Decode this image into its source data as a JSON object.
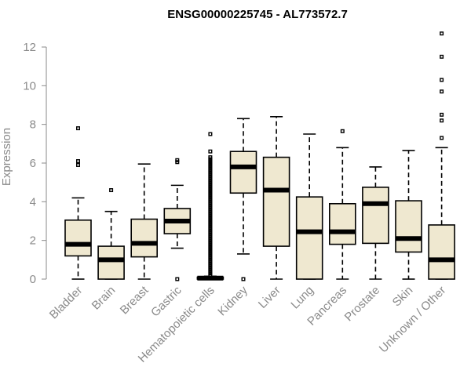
{
  "chart_data": {
    "type": "boxplot",
    "title": "ENSG00000225745 - AL773572.7",
    "xlabel": "",
    "ylabel": "Expression",
    "ylim": [
      0,
      12.7
    ],
    "yticks": [
      0,
      2,
      4,
      6,
      8,
      10,
      12
    ],
    "box_color": "#efe8d0",
    "categories": [
      "Bladder",
      "Brain",
      "Breast",
      "Gastric",
      "Hematopoietic cells",
      "Kidney",
      "Liver",
      "Lung",
      "Pancreas",
      "Prostate",
      "Skin",
      "Unknown / Other"
    ],
    "boxes": [
      {
        "min": 0,
        "q1": 1.2,
        "median": 1.8,
        "q3": 3.05,
        "max": 4.2,
        "outliers": [
          5.9,
          6.1,
          7.8
        ]
      },
      {
        "min": 0,
        "q1": 0,
        "median": 1.0,
        "q3": 1.7,
        "max": 3.5,
        "outliers": [
          4.6
        ]
      },
      {
        "min": 0,
        "q1": 1.15,
        "median": 1.85,
        "q3": 3.1,
        "max": 5.95,
        "outliers": []
      },
      {
        "min": 1.6,
        "q1": 2.35,
        "median": 3.0,
        "q3": 3.65,
        "max": 4.85,
        "outliers": [
          0,
          6.05,
          6.15
        ]
      },
      {
        "min": 0,
        "q1": 0,
        "median": 0.05,
        "q3": 0.1,
        "max": 0.15,
        "outliers": [
          0.2,
          0.3,
          0.4,
          0.5,
          0.6,
          0.7,
          0.8,
          0.9,
          1.0,
          1.1,
          1.2,
          1.3,
          1.4,
          1.5,
          1.6,
          1.7,
          1.8,
          1.9,
          2.0,
          2.1,
          2.2,
          2.3,
          2.4,
          2.5,
          2.6,
          2.7,
          2.8,
          2.9,
          3.0,
          3.1,
          3.2,
          3.3,
          3.4,
          3.5,
          3.6,
          3.7,
          3.8,
          3.9,
          4.0,
          4.1,
          4.2,
          4.3,
          4.4,
          4.5,
          4.6,
          4.7,
          4.8,
          4.9,
          5.0,
          5.1,
          5.2,
          5.3,
          5.4,
          5.5,
          5.6,
          5.7,
          5.8,
          5.9,
          6.0,
          6.1,
          6.2,
          6.3,
          6.6,
          7.5
        ]
      },
      {
        "min": 1.3,
        "q1": 4.45,
        "median": 5.8,
        "q3": 6.6,
        "max": 8.3,
        "outliers": [
          0
        ]
      },
      {
        "min": 0,
        "q1": 1.7,
        "median": 4.6,
        "q3": 6.3,
        "max": 8.4,
        "outliers": []
      },
      {
        "min": 0,
        "q1": 0,
        "median": 2.45,
        "q3": 4.25,
        "max": 7.5,
        "outliers": []
      },
      {
        "min": 0,
        "q1": 1.8,
        "median": 2.45,
        "q3": 3.9,
        "max": 6.8,
        "outliers": [
          7.65
        ]
      },
      {
        "min": 0,
        "q1": 1.85,
        "median": 3.9,
        "q3": 4.75,
        "max": 5.8,
        "outliers": []
      },
      {
        "min": 0,
        "q1": 1.4,
        "median": 2.1,
        "q3": 4.05,
        "max": 6.65,
        "outliers": []
      },
      {
        "min": 0,
        "q1": 0,
        "median": 1.0,
        "q3": 2.8,
        "max": 6.8,
        "outliers": [
          7.3,
          8.2,
          8.5,
          9.7,
          10.3,
          11.5,
          12.7
        ]
      }
    ]
  }
}
